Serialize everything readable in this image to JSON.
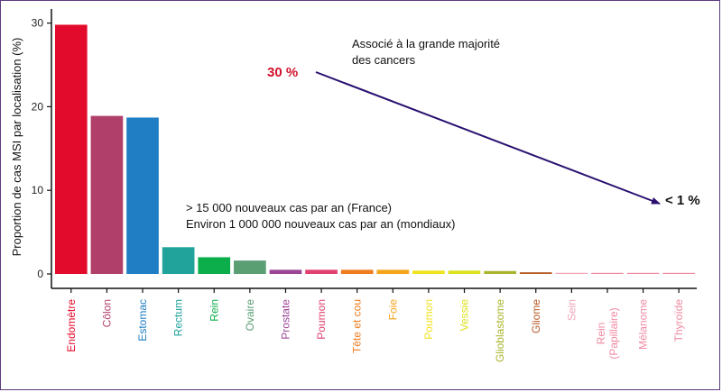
{
  "chart_data": {
    "type": "bar",
    "ylabel": "Proportion de cas MSI par localisation (%)",
    "ylim": [
      0,
      31
    ],
    "yticks": [
      0,
      10,
      20,
      30
    ],
    "grid": false,
    "categories": [
      {
        "label": "Endomètre",
        "value": 29.8,
        "color": "#e30b2c"
      },
      {
        "label": "Côlon",
        "value": 18.9,
        "color": "#b03f6a"
      },
      {
        "label": "Estomac",
        "value": 18.7,
        "color": "#1f7ec4"
      },
      {
        "label": "Rectum",
        "value": 3.2,
        "color": "#21a39b"
      },
      {
        "label": "Rein",
        "value": 2.0,
        "color": "#0cae4c"
      },
      {
        "label": "Ovaire",
        "value": 1.6,
        "color": "#5a9e74"
      },
      {
        "label": "Prostate",
        "value": 0.5,
        "color": "#9b4596"
      },
      {
        "label": "Poumon",
        "value": 0.5,
        "color": "#e0416f"
      },
      {
        "label": "Tête et cou",
        "value": 0.5,
        "color": "#ef7d1f"
      },
      {
        "label": "Foie",
        "value": 0.5,
        "color": "#f4a51c"
      },
      {
        "label": "Poumon",
        "value": 0.4,
        "color": "#f1e21e"
      },
      {
        "label": "Vessie",
        "value": 0.4,
        "color": "#dde11e"
      },
      {
        "label": "Glioblastome",
        "value": 0.35,
        "color": "#a9b52c"
      },
      {
        "label": "Gliome",
        "value": 0.2,
        "color": "#b65c28"
      },
      {
        "label": "Sein",
        "value": 0.1,
        "color": "#f2a4b6"
      },
      {
        "label": "Rein\n(Papillaire)",
        "value": 0.1,
        "color": "#f08aa2"
      },
      {
        "label": "Mélanome",
        "value": 0.1,
        "color": "#f08aa2"
      },
      {
        "label": "Thyroïde",
        "value": 0.1,
        "color": "#f08aa2"
      }
    ],
    "annotations": {
      "majority_line1": "Associé à la grande majorité",
      "majority_line2": "des cancers",
      "high_value": "30 %",
      "high_color": "#d0112b",
      "low_value": "< 1 %",
      "arrow_color": "#2a1070",
      "cases_line1": "> 15 000 nouveaux cas par an (France)",
      "cases_line2": "Environ 1 000 000 nouveaux cas par an (mondiaux)"
    }
  }
}
